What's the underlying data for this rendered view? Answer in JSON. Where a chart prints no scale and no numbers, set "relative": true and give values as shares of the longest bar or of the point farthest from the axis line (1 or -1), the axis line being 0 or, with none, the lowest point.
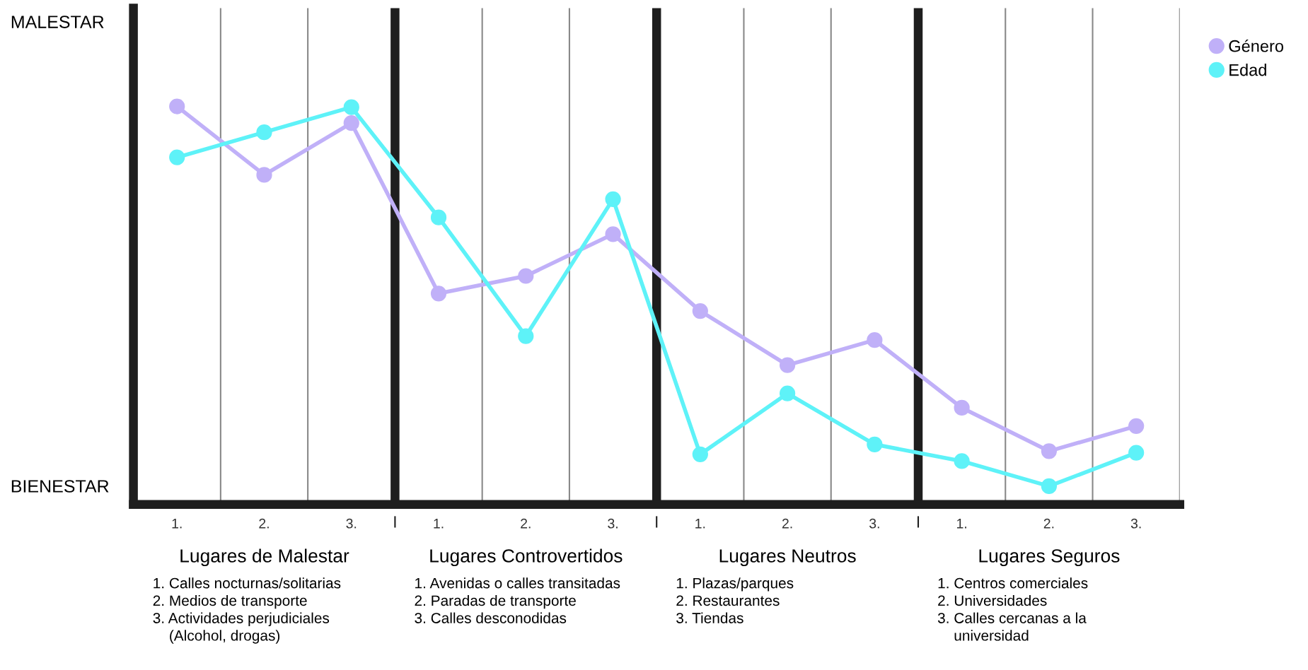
{
  "chart_data": {
    "type": "line",
    "relative": true,
    "categories": [
      "1.",
      "2.",
      "3.",
      "1.",
      "2.",
      "3.",
      "1.",
      "2.",
      "3.",
      "1.",
      "2.",
      "3."
    ],
    "series": [
      {
        "name": "Género",
        "color": "#c0b0f8",
        "values": [
          1.0,
          0.828,
          0.958,
          0.53,
          0.574,
          0.679,
          0.486,
          0.35,
          0.413,
          0.243,
          0.134,
          0.197
        ]
      },
      {
        "name": "Edad",
        "color": "#5ef2f8",
        "values": [
          0.872,
          0.935,
          0.998,
          0.721,
          0.423,
          0.767,
          0.126,
          0.279,
          0.151,
          0.109,
          0.046,
          0.13
        ]
      }
    ],
    "annotations": [
      "MALESTAR",
      "BIENESTAR",
      "Lugares de Malestar",
      "1. Calles nocturnas/solitarias\n2. Medios de transporte\n3. Actividades perjudiciales\n    (Alcohol, drogas)",
      "Lugares Controvertidos",
      "1. Avenidas o calles transitadas\n2. Paradas de transporte\n3. Calles desconodidas",
      "Lugares Neutros",
      "1. Plazas/parques\n2. Restaurantes\n3. Tiendas",
      "Lugares Seguros",
      "1. Centros comerciales\n2. Universidades\n3. Calles cercanas a la\n    universidad"
    ],
    "grid": "x",
    "legend": "top right",
    "marker": "circle",
    "line_style": "solid"
  }
}
